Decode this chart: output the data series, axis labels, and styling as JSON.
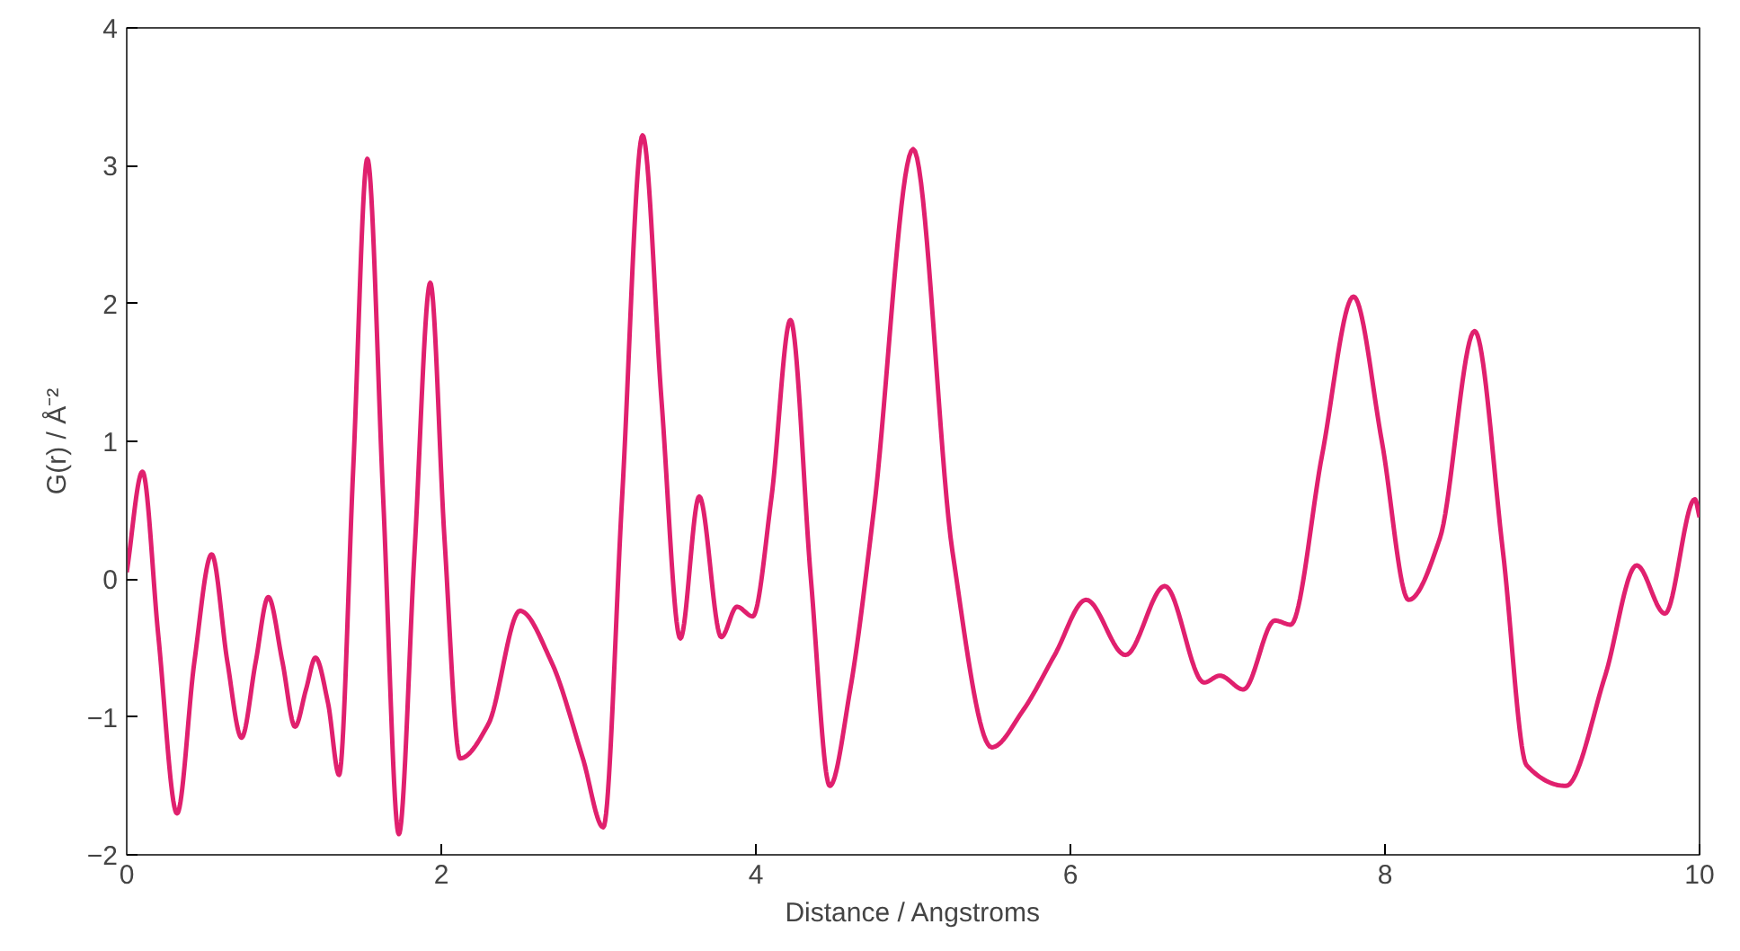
{
  "chart_data": {
    "type": "line",
    "xlabel": "Distance / Angstroms",
    "ylabel": "G(r) / Å⁻²",
    "xlim": [
      0,
      10
    ],
    "ylim": [
      -2,
      4
    ],
    "xticks": [
      0,
      2,
      4,
      6,
      8,
      10
    ],
    "yticks": [
      -2,
      -1,
      0,
      1,
      2,
      3,
      4
    ],
    "grid": false,
    "marker": "none",
    "line_style": "solid",
    "series": [
      {
        "color": "#e0206e",
        "x": [
          0,
          0.1,
          0.2,
          0.32,
          0.43,
          0.54,
          0.64,
          0.73,
          0.82,
          0.9,
          0.99,
          1.07,
          1.14,
          1.2,
          1.28,
          1.35,
          1.44,
          1.53,
          1.63,
          1.73,
          1.83,
          1.93,
          2.02,
          2.12,
          2.3,
          2.5,
          2.7,
          2.9,
          3.03,
          3.15,
          3.28,
          3.4,
          3.52,
          3.64,
          3.78,
          3.88,
          3.98,
          4.1,
          4.22,
          4.35,
          4.47,
          4.6,
          4.75,
          5.0,
          5.25,
          5.5,
          5.7,
          5.9,
          6.1,
          6.35,
          6.6,
          6.85,
          6.95,
          7.1,
          7.3,
          7.4,
          7.6,
          7.8,
          7.98,
          8.15,
          8.35,
          8.57,
          8.75,
          8.9,
          9.15,
          9.4,
          9.6,
          9.78,
          9.97,
          10.0
        ],
        "values": [
          0.05,
          0.78,
          -0.4,
          -1.7,
          -0.6,
          0.18,
          -0.6,
          -1.15,
          -0.6,
          -0.13,
          -0.6,
          -1.07,
          -0.8,
          -0.57,
          -0.9,
          -1.42,
          0.8,
          3.05,
          0.6,
          -1.85,
          0.2,
          2.15,
          0.3,
          -1.3,
          -1.05,
          -0.23,
          -0.6,
          -1.3,
          -1.8,
          0.6,
          3.22,
          1.3,
          -0.43,
          0.6,
          -0.42,
          -0.2,
          -0.27,
          0.6,
          1.88,
          0.0,
          -1.5,
          -0.8,
          0.5,
          3.12,
          0.2,
          -1.22,
          -0.95,
          -0.55,
          -0.15,
          -0.55,
          -0.05,
          -0.75,
          -0.7,
          -0.8,
          -0.3,
          -0.33,
          0.9,
          2.05,
          1.0,
          -0.15,
          0.3,
          1.8,
          0.2,
          -1.35,
          -1.5,
          -0.7,
          0.1,
          -0.25,
          0.58,
          0.45
        ]
      }
    ]
  }
}
